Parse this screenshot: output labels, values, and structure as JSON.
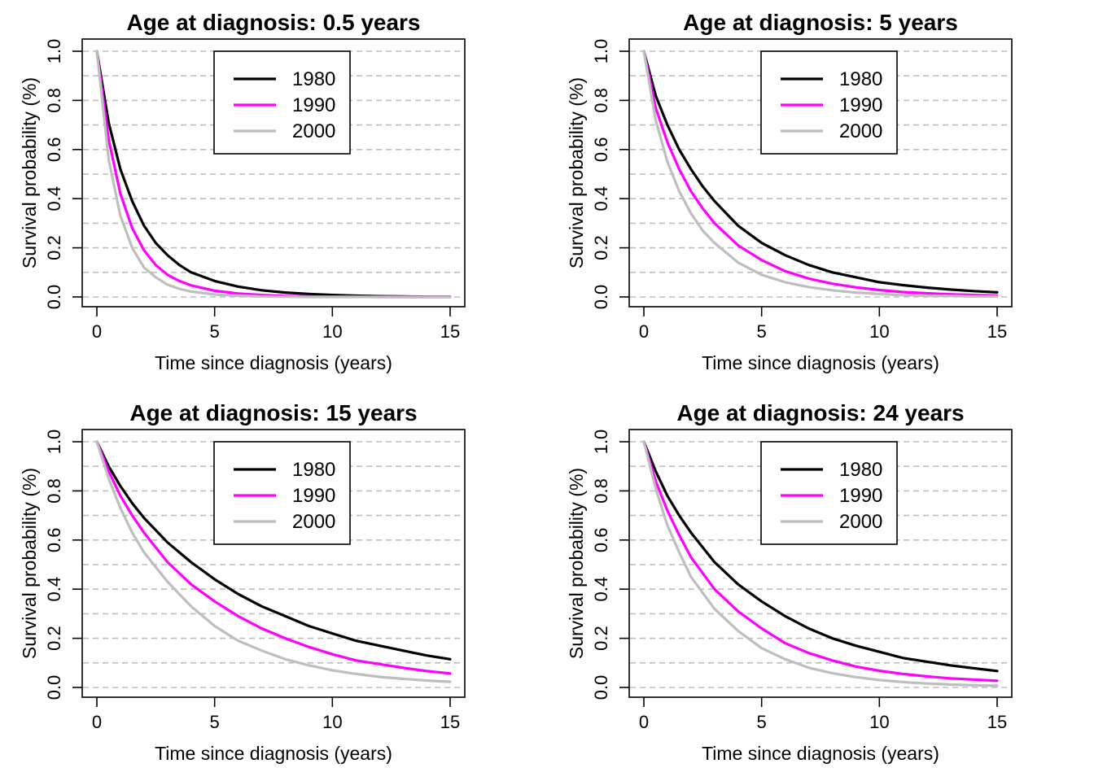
{
  "chart_data": [
    {
      "type": "line",
      "title": "Age at diagnosis: 0.5 years",
      "xlabel": "Time since diagnosis (years)",
      "ylabel": "Survival probability (%)",
      "xlim": [
        0,
        15
      ],
      "ylim": [
        0,
        1
      ],
      "xticks": [
        "0",
        "5",
        "10",
        "15"
      ],
      "yticks": [
        "0.0",
        "0.2",
        "0.4",
        "0.6",
        "0.8",
        "1.0"
      ],
      "grid": "horizontal dashed",
      "legend_position": "top-center",
      "series": [
        {
          "name": "1980",
          "color": "#000000",
          "x": [
            0,
            0.5,
            1,
            1.5,
            2,
            2.5,
            3,
            3.5,
            4,
            5,
            6,
            7,
            8,
            9,
            10,
            11,
            12,
            13,
            14,
            15
          ],
          "y": [
            1.0,
            0.71,
            0.52,
            0.39,
            0.29,
            0.22,
            0.17,
            0.13,
            0.1,
            0.065,
            0.042,
            0.027,
            0.018,
            0.012,
            0.008,
            0.005,
            0.003,
            0.002,
            0.001,
            0.001
          ]
        },
        {
          "name": "1990",
          "color": "#ff00ff",
          "x": [
            0,
            0.5,
            1,
            1.5,
            2,
            2.5,
            3,
            3.5,
            4,
            5,
            6,
            7,
            8,
            9,
            10,
            11,
            12,
            13,
            14,
            15
          ],
          "y": [
            1.0,
            0.64,
            0.42,
            0.28,
            0.19,
            0.13,
            0.09,
            0.065,
            0.047,
            0.025,
            0.014,
            0.008,
            0.004,
            0.002,
            0.001,
            0.001,
            0.0,
            0.0,
            0.0,
            0.0
          ]
        },
        {
          "name": "2000",
          "color": "#bebebe",
          "x": [
            0,
            0.5,
            1,
            1.5,
            2,
            2.5,
            3,
            3.5,
            4,
            5,
            6,
            7,
            8,
            9,
            10,
            11,
            12,
            13,
            14,
            15
          ],
          "y": [
            1.0,
            0.56,
            0.33,
            0.2,
            0.12,
            0.08,
            0.05,
            0.033,
            0.022,
            0.01,
            0.005,
            0.002,
            0.001,
            0.0,
            0.0,
            0.0,
            0.0,
            0.0,
            0.0,
            0.0
          ]
        }
      ]
    },
    {
      "type": "line",
      "title": "Age at diagnosis: 5 years",
      "xlabel": "Time since diagnosis (years)",
      "ylabel": "Survival probability (%)",
      "xlim": [
        0,
        15
      ],
      "ylim": [
        0,
        1
      ],
      "xticks": [
        "0",
        "5",
        "10",
        "15"
      ],
      "yticks": [
        "0.0",
        "0.2",
        "0.4",
        "0.6",
        "0.8",
        "1.0"
      ],
      "grid": "horizontal dashed",
      "legend_position": "top-center",
      "series": [
        {
          "name": "1980",
          "color": "#000000",
          "x": [
            0,
            0.5,
            1,
            1.5,
            2,
            2.5,
            3,
            4,
            5,
            6,
            7,
            8,
            9,
            10,
            11,
            12,
            13,
            14,
            15
          ],
          "y": [
            1.0,
            0.82,
            0.7,
            0.6,
            0.52,
            0.45,
            0.39,
            0.29,
            0.22,
            0.17,
            0.13,
            0.1,
            0.08,
            0.06,
            0.048,
            0.038,
            0.03,
            0.024,
            0.019
          ]
        },
        {
          "name": "1990",
          "color": "#ff00ff",
          "x": [
            0,
            0.5,
            1,
            1.5,
            2,
            2.5,
            3,
            4,
            5,
            6,
            7,
            8,
            9,
            10,
            11,
            12,
            13,
            14,
            15
          ],
          "y": [
            1.0,
            0.77,
            0.63,
            0.52,
            0.43,
            0.36,
            0.3,
            0.21,
            0.15,
            0.105,
            0.075,
            0.054,
            0.039,
            0.028,
            0.02,
            0.015,
            0.011,
            0.008,
            0.006
          ]
        },
        {
          "name": "2000",
          "color": "#bebebe",
          "x": [
            0,
            0.5,
            1,
            1.5,
            2,
            2.5,
            3,
            4,
            5,
            6,
            7,
            8,
            9,
            10,
            11,
            12,
            13,
            14,
            15
          ],
          "y": [
            1.0,
            0.72,
            0.55,
            0.43,
            0.34,
            0.27,
            0.22,
            0.14,
            0.09,
            0.06,
            0.04,
            0.027,
            0.018,
            0.012,
            0.008,
            0.005,
            0.004,
            0.002,
            0.002
          ]
        }
      ]
    },
    {
      "type": "line",
      "title": "Age at diagnosis: 15 years",
      "xlabel": "Time since diagnosis (years)",
      "ylabel": "Survival probability (%)",
      "xlim": [
        0,
        15
      ],
      "ylim": [
        0,
        1
      ],
      "xticks": [
        "0",
        "5",
        "10",
        "15"
      ],
      "yticks": [
        "0.0",
        "0.2",
        "0.4",
        "0.6",
        "0.8",
        "1.0"
      ],
      "grid": "horizontal dashed",
      "legend_position": "top-center",
      "series": [
        {
          "name": "1980",
          "color": "#000000",
          "x": [
            0,
            0.5,
            1,
            1.5,
            2,
            3,
            4,
            5,
            6,
            7,
            8,
            9,
            10,
            11,
            12,
            13,
            14,
            15
          ],
          "y": [
            1.0,
            0.9,
            0.82,
            0.75,
            0.69,
            0.59,
            0.51,
            0.44,
            0.38,
            0.33,
            0.29,
            0.25,
            0.22,
            0.19,
            0.17,
            0.15,
            0.13,
            0.115
          ]
        },
        {
          "name": "1990",
          "color": "#ff00ff",
          "x": [
            0,
            0.5,
            1,
            1.5,
            2,
            3,
            4,
            5,
            6,
            7,
            8,
            9,
            10,
            11,
            12,
            13,
            14,
            15
          ],
          "y": [
            1.0,
            0.88,
            0.78,
            0.7,
            0.63,
            0.51,
            0.42,
            0.35,
            0.29,
            0.24,
            0.2,
            0.165,
            0.135,
            0.11,
            0.095,
            0.08,
            0.067,
            0.057
          ]
        },
        {
          "name": "2000",
          "color": "#bebebe",
          "x": [
            0,
            0.5,
            1,
            1.5,
            2,
            3,
            4,
            5,
            6,
            7,
            8,
            9,
            10,
            11,
            12,
            13,
            14,
            15
          ],
          "y": [
            1.0,
            0.85,
            0.73,
            0.63,
            0.55,
            0.43,
            0.33,
            0.25,
            0.19,
            0.15,
            0.115,
            0.09,
            0.07,
            0.055,
            0.043,
            0.035,
            0.028,
            0.023
          ]
        }
      ]
    },
    {
      "type": "line",
      "title": "Age at diagnosis: 24 years",
      "xlabel": "Time since diagnosis (years)",
      "ylabel": "Survival probability (%)",
      "xlim": [
        0,
        15
      ],
      "ylim": [
        0,
        1
      ],
      "xticks": [
        "0",
        "5",
        "10",
        "15"
      ],
      "yticks": [
        "0.0",
        "0.2",
        "0.4",
        "0.6",
        "0.8",
        "1.0"
      ],
      "grid": "horizontal dashed",
      "legend_position": "top-center",
      "series": [
        {
          "name": "1980",
          "color": "#000000",
          "x": [
            0,
            0.5,
            1,
            1.5,
            2,
            3,
            4,
            5,
            6,
            7,
            8,
            9,
            10,
            11,
            12,
            13,
            14,
            15
          ],
          "y": [
            1.0,
            0.88,
            0.78,
            0.7,
            0.63,
            0.51,
            0.42,
            0.35,
            0.29,
            0.24,
            0.2,
            0.17,
            0.145,
            0.12,
            0.105,
            0.09,
            0.078,
            0.067
          ]
        },
        {
          "name": "1990",
          "color": "#ff00ff",
          "x": [
            0,
            0.5,
            1,
            1.5,
            2,
            3,
            4,
            5,
            6,
            7,
            8,
            9,
            10,
            11,
            12,
            13,
            14,
            15
          ],
          "y": [
            1.0,
            0.84,
            0.72,
            0.62,
            0.53,
            0.4,
            0.31,
            0.24,
            0.18,
            0.14,
            0.11,
            0.085,
            0.068,
            0.055,
            0.045,
            0.037,
            0.032,
            0.027
          ]
        },
        {
          "name": "2000",
          "color": "#bebebe",
          "x": [
            0,
            0.5,
            1,
            1.5,
            2,
            3,
            4,
            5,
            6,
            7,
            8,
            9,
            10,
            11,
            12,
            13,
            14,
            15
          ],
          "y": [
            1.0,
            0.81,
            0.66,
            0.55,
            0.45,
            0.32,
            0.23,
            0.16,
            0.115,
            0.08,
            0.058,
            0.042,
            0.03,
            0.022,
            0.016,
            0.012,
            0.009,
            0.007
          ]
        }
      ]
    }
  ]
}
